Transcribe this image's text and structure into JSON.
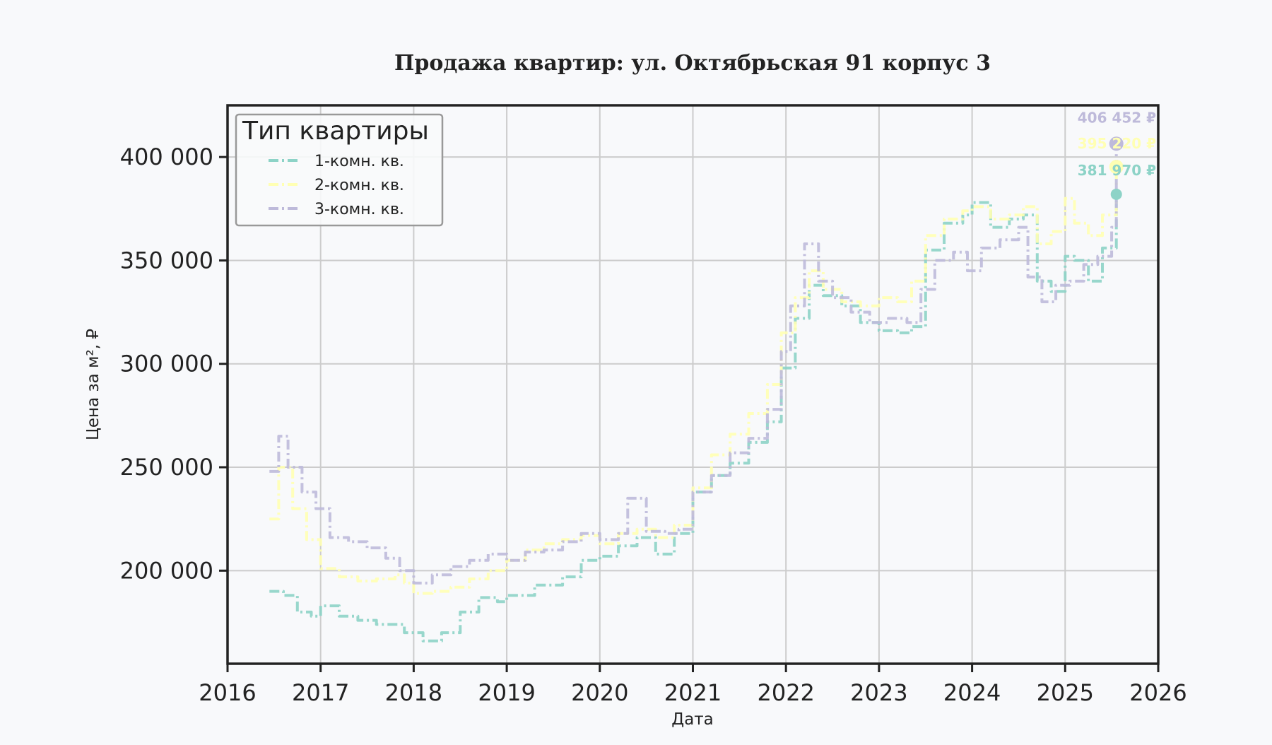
{
  "chart_data": {
    "type": "line",
    "title": "Продажа квартир: ул. Октябрьская 91 корпус 3",
    "xlabel": "Дата",
    "ylabel": "Цена за м², ₽",
    "xlim": [
      2016,
      2026
    ],
    "ylim": [
      155000,
      425000
    ],
    "x_ticks": [
      "2016",
      "2017",
      "2018",
      "2019",
      "2020",
      "2021",
      "2022",
      "2023",
      "2024",
      "2025",
      "2026"
    ],
    "y_ticks": [
      {
        "value": 200000,
        "label": "200 000"
      },
      {
        "value": 250000,
        "label": "250 000"
      },
      {
        "value": 300000,
        "label": "300 000"
      },
      {
        "value": 350000,
        "label": "350 000"
      },
      {
        "value": 400000,
        "label": "400 000"
      }
    ],
    "grid": true,
    "legend": {
      "title": "Тип квартиры",
      "placement": "top-left"
    },
    "series": [
      {
        "name": "1-комн. кв.",
        "color": "#8dd3c7",
        "x": [
          2016.45,
          2016.6,
          2016.75,
          2016.9,
          2017.0,
          2017.2,
          2017.4,
          2017.6,
          2017.8,
          2017.9,
          2018.0,
          2018.1,
          2018.3,
          2018.5,
          2018.7,
          2018.9,
          2019.0,
          2019.3,
          2019.6,
          2019.8,
          2020.0,
          2020.2,
          2020.4,
          2020.6,
          2020.8,
          2021.0,
          2021.2,
          2021.4,
          2021.6,
          2021.8,
          2021.95,
          2022.1,
          2022.25,
          2022.4,
          2022.6,
          2022.8,
          2023.0,
          2023.2,
          2023.35,
          2023.5,
          2023.7,
          2023.9,
          2024.0,
          2024.2,
          2024.4,
          2024.55,
          2024.7,
          2024.85,
          2025.0,
          2025.1,
          2025.25,
          2025.4,
          2025.55
        ],
        "values": [
          190000,
          188000,
          180000,
          178000,
          183000,
          178000,
          176000,
          174000,
          174000,
          170000,
          170000,
          166000,
          170000,
          180000,
          187000,
          185000,
          188000,
          193000,
          197000,
          205000,
          207000,
          212000,
          216000,
          208000,
          218000,
          238000,
          246000,
          252000,
          262000,
          272000,
          298000,
          322000,
          338000,
          333000,
          328000,
          320000,
          316000,
          315000,
          318000,
          355000,
          368000,
          372000,
          378000,
          366000,
          370000,
          372000,
          340000,
          335000,
          352000,
          350000,
          340000,
          356000,
          381970
        ]
      },
      {
        "name": "2-комн. кв.",
        "color": "#ffffb3",
        "x": [
          2016.45,
          2016.55,
          2016.7,
          2016.85,
          2017.0,
          2017.2,
          2017.4,
          2017.6,
          2017.8,
          2017.9,
          2018.0,
          2018.2,
          2018.4,
          2018.6,
          2018.8,
          2019.0,
          2019.2,
          2019.4,
          2019.6,
          2019.8,
          2020.0,
          2020.2,
          2020.4,
          2020.6,
          2020.8,
          2021.0,
          2021.2,
          2021.4,
          2021.6,
          2021.8,
          2021.95,
          2022.1,
          2022.25,
          2022.4,
          2022.6,
          2022.8,
          2023.0,
          2023.2,
          2023.35,
          2023.5,
          2023.7,
          2023.9,
          2024.0,
          2024.2,
          2024.4,
          2024.55,
          2024.7,
          2024.85,
          2025.0,
          2025.1,
          2025.25,
          2025.4,
          2025.55
        ],
        "values": [
          225000,
          250000,
          230000,
          215000,
          201000,
          197000,
          195000,
          196000,
          198000,
          194000,
          189000,
          190000,
          192000,
          196000,
          200000,
          205000,
          210000,
          213000,
          215000,
          217000,
          213000,
          218000,
          220000,
          216000,
          222000,
          240000,
          256000,
          266000,
          276000,
          290000,
          315000,
          332000,
          345000,
          336000,
          330000,
          328000,
          332000,
          330000,
          340000,
          362000,
          370000,
          374000,
          376000,
          370000,
          372000,
          376000,
          358000,
          364000,
          380000,
          368000,
          362000,
          372000,
          395220
        ]
      },
      {
        "name": "3-комн. кв.",
        "color": "#bebada",
        "x": [
          2016.45,
          2016.55,
          2016.65,
          2016.8,
          2016.95,
          2017.1,
          2017.3,
          2017.5,
          2017.7,
          2017.85,
          2018.0,
          2018.2,
          2018.4,
          2018.6,
          2018.8,
          2019.0,
          2019.2,
          2019.4,
          2019.6,
          2019.8,
          2020.0,
          2020.2,
          2020.3,
          2020.5,
          2020.7,
          2020.85,
          2021.0,
          2021.2,
          2021.4,
          2021.6,
          2021.8,
          2021.95,
          2022.05,
          2022.2,
          2022.35,
          2022.5,
          2022.7,
          2022.9,
          2023.1,
          2023.3,
          2023.45,
          2023.6,
          2023.8,
          2023.95,
          2024.1,
          2024.3,
          2024.5,
          2024.6,
          2024.75,
          2024.9,
          2025.05,
          2025.2,
          2025.35,
          2025.5,
          2025.55
        ],
        "values": [
          248000,
          265000,
          250000,
          238000,
          230000,
          216000,
          214000,
          211000,
          206000,
          200000,
          194000,
          198000,
          202000,
          205000,
          208000,
          205000,
          209000,
          210000,
          214000,
          218000,
          215000,
          218000,
          235000,
          219000,
          218000,
          220000,
          238000,
          246000,
          257000,
          264000,
          278000,
          306000,
          328000,
          358000,
          340000,
          332000,
          325000,
          320000,
          322000,
          320000,
          336000,
          350000,
          354000,
          345000,
          356000,
          360000,
          366000,
          342000,
          330000,
          338000,
          340000,
          348000,
          352000,
          366000,
          406452
        ]
      }
    ],
    "annotations": [
      {
        "series": "3-комн. кв.",
        "label": "406 452 ₽",
        "x": 2025.55,
        "value": 406452
      },
      {
        "series": "2-комн. кв.",
        "label": "395 220 ₽",
        "x": 2025.55,
        "value": 395220
      },
      {
        "series": "1-комн. кв.",
        "label": "381 970 ₽",
        "x": 2025.55,
        "value": 381970
      }
    ]
  }
}
